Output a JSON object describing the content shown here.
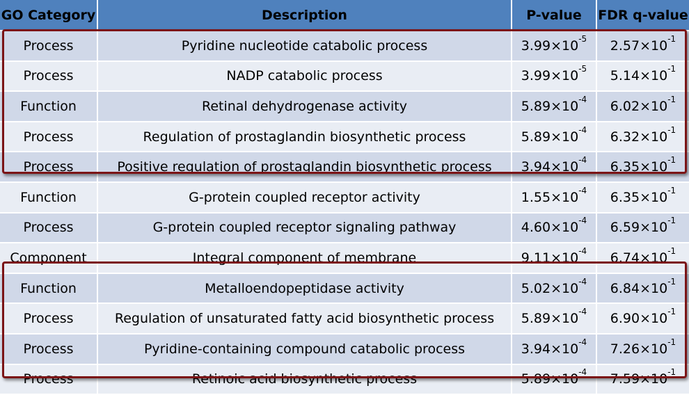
{
  "table": {
    "headers": [
      "GO Category",
      "Description",
      "P-value",
      "FDR q-value"
    ],
    "rows": [
      {
        "category": "Process",
        "description": "Pyridine nucleotide catabolic process",
        "p_mantissa": "3.99",
        "p_exp": "-5",
        "q_mantissa": "2.57",
        "q_exp": "-1"
      },
      {
        "category": "Process",
        "description": "NADP catabolic process",
        "p_mantissa": "3.99",
        "p_exp": "-5",
        "q_mantissa": "5.14",
        "q_exp": "-1"
      },
      {
        "category": "Function",
        "description": "Retinal dehydrogenase activity",
        "p_mantissa": "5.89",
        "p_exp": "-4",
        "q_mantissa": "6.02",
        "q_exp": "-1"
      },
      {
        "category": "Process",
        "description": "Regulation of prostaglandin biosynthetic process",
        "p_mantissa": "5.89",
        "p_exp": "-4",
        "q_mantissa": "6.32",
        "q_exp": "-1"
      },
      {
        "category": "Process",
        "description": "Positive regulation of prostaglandin biosynthetic process",
        "p_mantissa": "3.94",
        "p_exp": "-4",
        "q_mantissa": "6.35",
        "q_exp": "-1"
      },
      {
        "category": "Function",
        "description": "G-protein coupled receptor activity",
        "p_mantissa": "1.55",
        "p_exp": "-4",
        "q_mantissa": "6.35",
        "q_exp": "-1"
      },
      {
        "category": "Process",
        "description": "G-protein coupled receptor signaling pathway",
        "p_mantissa": "4.60",
        "p_exp": "-4",
        "q_mantissa": "6.59",
        "q_exp": "-1"
      },
      {
        "category": "Component",
        "description": "Integral component of membrane",
        "p_mantissa": "9.11",
        "p_exp": "-4",
        "q_mantissa": "6.74",
        "q_exp": "-1"
      },
      {
        "category": "Function",
        "description": "Metalloendopeptidase activity",
        "p_mantissa": "5.02",
        "p_exp": "-4",
        "q_mantissa": "6.84",
        "q_exp": "-1"
      },
      {
        "category": "Process",
        "description": "Regulation of unsaturated fatty acid biosynthetic process",
        "p_mantissa": "5.89",
        "p_exp": "-4",
        "q_mantissa": "6.90",
        "q_exp": "-1"
      },
      {
        "category": "Process",
        "description": "Pyridine-containing compound catabolic process",
        "p_mantissa": "3.94",
        "p_exp": "-4",
        "q_mantissa": "7.26",
        "q_exp": "-1"
      },
      {
        "category": "Process",
        "description": "Retinoic acid biosynthetic process",
        "p_mantissa": "5.89",
        "p_exp": "-4",
        "q_mantissa": "7.59",
        "q_exp": "-1"
      }
    ],
    "times_ten": "×10"
  },
  "colors": {
    "header_bg": "#4f81bd",
    "row_odd": "#d0d8e8",
    "row_even": "#e9edf4",
    "highlight_border": "#7b1416"
  }
}
